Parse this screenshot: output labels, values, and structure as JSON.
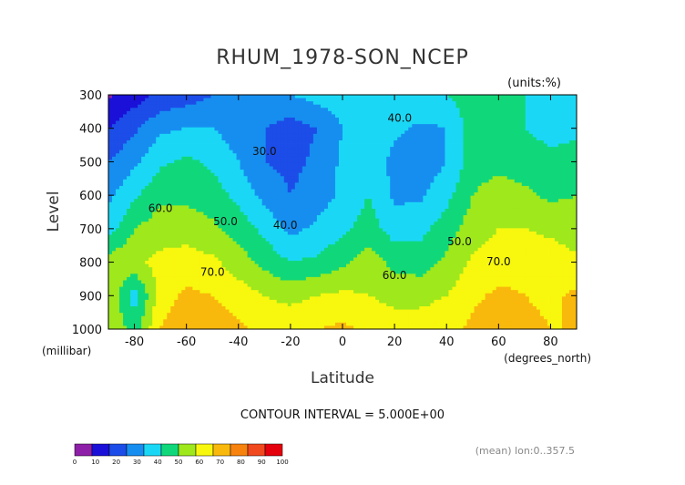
{
  "chart_data": {
    "type": "heatmap",
    "title": "RHUM_1978-SON_NCEP",
    "units": "(units:%)",
    "xlabel": "Latitude",
    "ylabel": "Level",
    "x_unit_label": "(degrees_north)",
    "y_unit_label": "(millibar)",
    "xlim": [
      -90,
      90
    ],
    "ylim": [
      1000,
      300
    ],
    "x_ticks": [
      -80,
      -60,
      -40,
      -20,
      0,
      20,
      40,
      60,
      80
    ],
    "y_ticks": [
      300,
      400,
      500,
      600,
      700,
      800,
      900,
      1000
    ],
    "contour_interval_text": "CONTOUR INTERVAL = 5.000E+00",
    "mean_text": "(mean) lon:0..357.5",
    "contour_labels": [
      {
        "text": "40.0",
        "lat": 22,
        "level": 380
      },
      {
        "text": "30.0",
        "lat": -30,
        "level": 480
      },
      {
        "text": "50.0",
        "lat": -45,
        "level": 690
      },
      {
        "text": "40.0",
        "lat": -22,
        "level": 700
      },
      {
        "text": "60.0",
        "lat": -70,
        "level": 650
      },
      {
        "text": "50.0",
        "lat": 45,
        "level": 750
      },
      {
        "text": "70.0",
        "lat": -50,
        "level": 840
      },
      {
        "text": "60.0",
        "lat": 20,
        "level": 850
      },
      {
        "text": "70.0",
        "lat": 60,
        "level": 810
      }
    ],
    "lats": [
      -90,
      -80,
      -70,
      -60,
      -50,
      -40,
      -30,
      -20,
      -10,
      0,
      10,
      20,
      30,
      40,
      50,
      60,
      70,
      80,
      90
    ],
    "levels": [
      300,
      400,
      500,
      600,
      700,
      800,
      900,
      1000
    ],
    "rows": [
      [
        8,
        15,
        22,
        25,
        30,
        35,
        40,
        40,
        44,
        45,
        50,
        50,
        50,
        50,
        55,
        55,
        50,
        45,
        45
      ],
      [
        20,
        28,
        38,
        40,
        40,
        35,
        30,
        25,
        30,
        40,
        45,
        42,
        38,
        40,
        55,
        55,
        50,
        47,
        47
      ],
      [
        30,
        38,
        48,
        52,
        48,
        40,
        30,
        27,
        32,
        42,
        47,
        37,
        33,
        40,
        55,
        57,
        55,
        52,
        55
      ],
      [
        38,
        48,
        58,
        58,
        55,
        47,
        37,
        30,
        35,
        42,
        50,
        38,
        38,
        47,
        60,
        65,
        62,
        58,
        60
      ],
      [
        45,
        60,
        65,
        65,
        62,
        56,
        47,
        37,
        42,
        47,
        55,
        45,
        47,
        55,
        65,
        70,
        70,
        68,
        65
      ],
      [
        65,
        68,
        73,
        75,
        72,
        65,
        57,
        50,
        52,
        58,
        65,
        57,
        55,
        62,
        72,
        75,
        77,
        75,
        72
      ],
      [
        70,
        45,
        75,
        82,
        80,
        75,
        70,
        67,
        70,
        72,
        70,
        67,
        67,
        70,
        78,
        82,
        80,
        78,
        82
      ],
      [
        70,
        55,
        80,
        88,
        85,
        82,
        78,
        77,
        80,
        82,
        78,
        75,
        75,
        77,
        82,
        87,
        83,
        80,
        80
      ]
    ],
    "colorbar": {
      "ticks": [
        "0",
        "10",
        "20",
        "30",
        "40",
        "50",
        "60",
        "70",
        "80",
        "90",
        "100"
      ],
      "colors": [
        "#8e1fa8",
        "#1a10d8",
        "#1c4de8",
        "#168ef0",
        "#1ad8f5",
        "#10d87a",
        "#9ee81c",
        "#f8f70e",
        "#f9b80c",
        "#f7820e",
        "#f1491e",
        "#e4000d"
      ]
    }
  }
}
